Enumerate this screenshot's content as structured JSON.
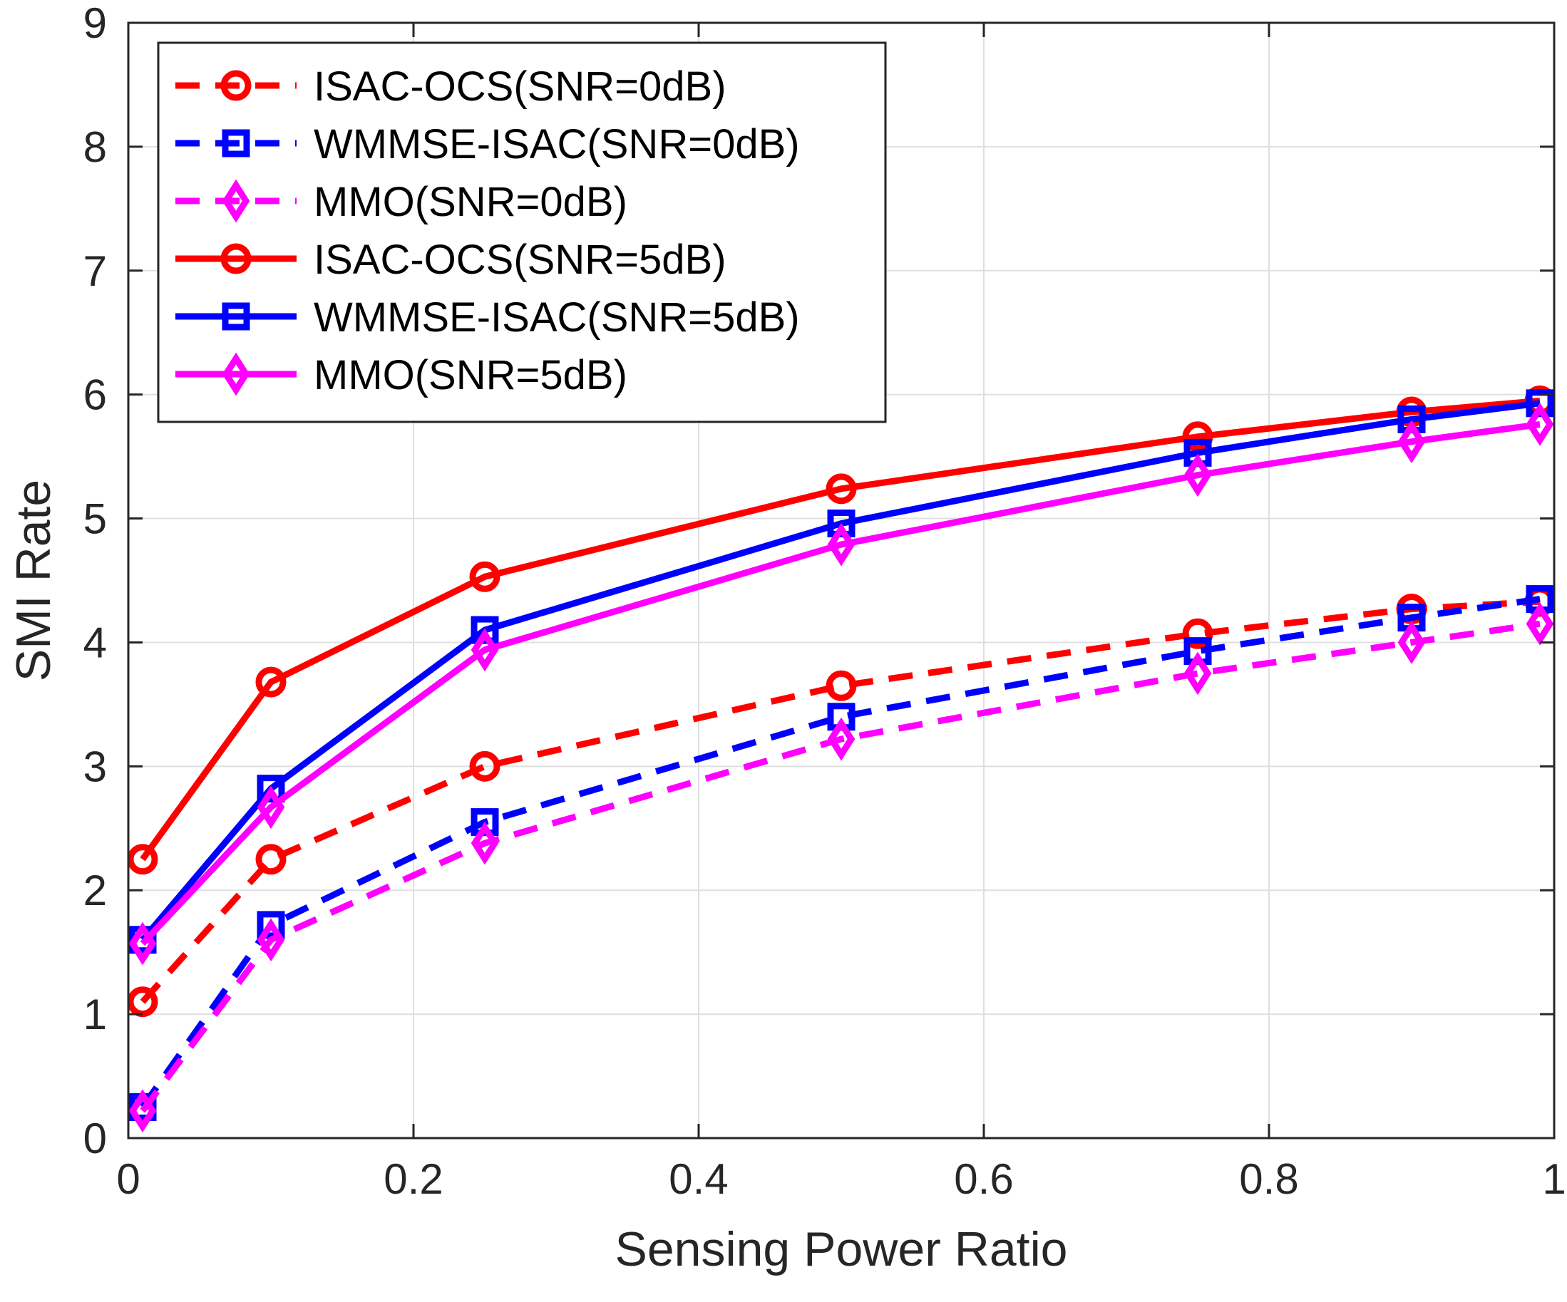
{
  "chart_data": {
    "type": "line",
    "title": "",
    "xlabel": "Sensing Power Ratio",
    "ylabel": "SMI Rate",
    "xlim": [
      0,
      1
    ],
    "ylim": [
      0,
      9
    ],
    "xticks": [
      0,
      0.2,
      0.4,
      0.6,
      0.8,
      1
    ],
    "xtick_labels": [
      "0",
      "0.2",
      "0.4",
      "0.6",
      "0.8",
      "1"
    ],
    "yticks": [
      0,
      1,
      2,
      3,
      4,
      5,
      6,
      7,
      8,
      9
    ],
    "ytick_labels": [
      "0",
      "1",
      "2",
      "3",
      "4",
      "5",
      "6",
      "7",
      "8",
      "9"
    ],
    "grid": true,
    "legend_position": "top-left",
    "x": [
      0.01,
      0.1,
      0.25,
      0.5,
      0.75,
      0.9,
      0.99
    ],
    "series": [
      {
        "name": "ISAC-OCS(SNR=0dB)",
        "color": "#ff0000",
        "line_style": "dashed",
        "marker": "circle",
        "values": [
          1.1,
          2.25,
          3.0,
          3.65,
          4.07,
          4.27,
          4.33
        ]
      },
      {
        "name": "WMMSE-ISAC(SNR=0dB)",
        "color": "#0000ff",
        "line_style": "dashed",
        "marker": "square",
        "values": [
          0.25,
          1.72,
          2.55,
          3.4,
          3.93,
          4.2,
          4.35
        ]
      },
      {
        "name": "MMO(SNR=0dB)",
        "color": "#ff00ff",
        "line_style": "dashed",
        "marker": "diamond",
        "values": [
          0.22,
          1.6,
          2.38,
          3.22,
          3.75,
          4.0,
          4.15
        ]
      },
      {
        "name": "ISAC-OCS(SNR=5dB)",
        "color": "#ff0000",
        "line_style": "solid",
        "marker": "circle",
        "values": [
          2.25,
          3.68,
          4.53,
          5.24,
          5.66,
          5.86,
          5.95
        ]
      },
      {
        "name": "WMMSE-ISAC(SNR=5dB)",
        "color": "#0000ff",
        "line_style": "solid",
        "marker": "square",
        "values": [
          1.6,
          2.82,
          4.1,
          4.96,
          5.53,
          5.8,
          5.93
        ]
      },
      {
        "name": "MMO(SNR=5dB)",
        "color": "#ff00ff",
        "line_style": "solid",
        "marker": "diamond",
        "values": [
          1.57,
          2.67,
          3.94,
          4.79,
          5.35,
          5.62,
          5.76
        ]
      }
    ]
  }
}
